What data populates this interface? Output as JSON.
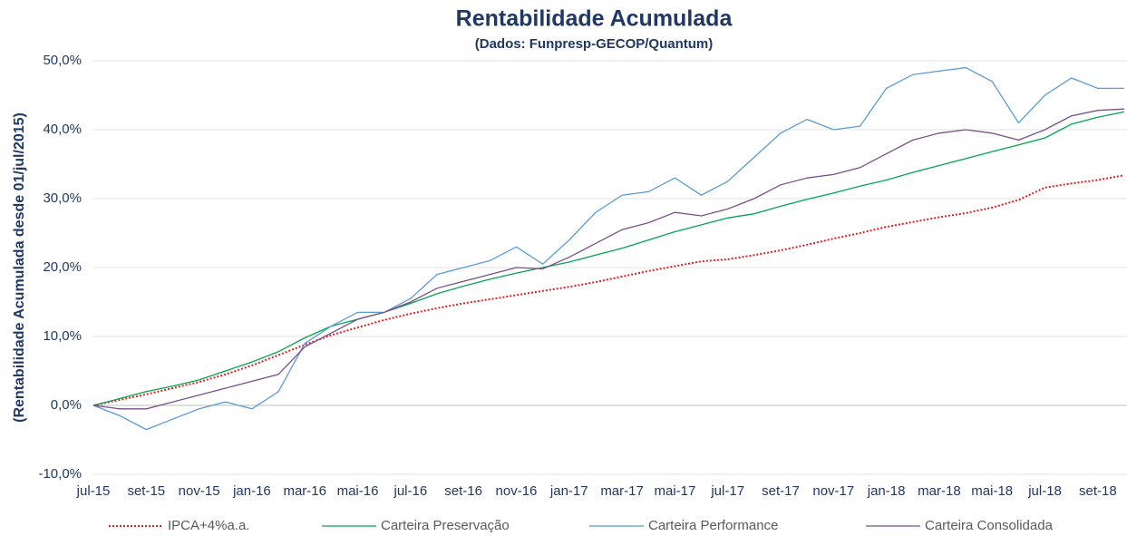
{
  "chart_data": {
    "type": "line",
    "title": "Rentabilidade Acumulada",
    "subtitle": "(Dados: Funpresp-GECOP/Quantum)",
    "y_axis_label": "(Rentabilidade Acumulada desde 01/jul/2015)",
    "categories": [
      "jul-15",
      null,
      "set-15",
      null,
      "nov-15",
      null,
      "jan-16",
      null,
      "mar-16",
      null,
      "mai-16",
      null,
      "jul-16",
      null,
      "set-16",
      null,
      "nov-16",
      null,
      "jan-17",
      null,
      "mar-17",
      null,
      "mai-17",
      null,
      "jul-17",
      null,
      "set-17",
      null,
      "nov-17",
      null,
      "jan-18",
      null,
      "mar-18",
      null,
      "mai-18",
      null,
      "jul-18",
      null,
      "set-18",
      null
    ],
    "ylim": [
      -10,
      50
    ],
    "yticks": [
      {
        "value": -10,
        "label": "-10,0%"
      },
      {
        "value": 0,
        "label": "0,0%"
      },
      {
        "value": 10,
        "label": "10,0%"
      },
      {
        "value": 20,
        "label": "20,0%"
      },
      {
        "value": 30,
        "label": "30,0%"
      },
      {
        "value": 40,
        "label": "40,0%"
      },
      {
        "value": 50,
        "label": "50,0%"
      }
    ],
    "grid": true,
    "legend": "bottom",
    "series": [
      {
        "name": "IPCA+4%a.a.",
        "color": "#e02020",
        "dash": "dotted",
        "values": [
          0,
          0.8,
          1.6,
          2.5,
          3.4,
          4.5,
          5.8,
          7.3,
          8.8,
          10.2,
          11.3,
          12.4,
          13.3,
          14.1,
          14.8,
          15.4,
          16.0,
          16.6,
          17.2,
          17.9,
          18.7,
          19.5,
          20.2,
          20.9,
          21.2,
          21.8,
          22.5,
          23.3,
          24.2,
          25.0,
          25.9,
          26.6,
          27.3,
          27.9,
          28.7,
          29.8,
          31.6,
          32.2,
          32.7,
          33.4
        ]
      },
      {
        "name": "Carteira Preservação",
        "color": "#00a550",
        "values": [
          0,
          1.0,
          2.0,
          2.8,
          3.7,
          5.0,
          6.3,
          7.8,
          9.8,
          11.5,
          12.5,
          13.5,
          14.8,
          16.2,
          17.3,
          18.3,
          19.2,
          20.0,
          20.8,
          21.8,
          22.8,
          24.0,
          25.2,
          26.2,
          27.2,
          27.8,
          28.9,
          29.9,
          30.8,
          31.8,
          32.7,
          33.8,
          34.8,
          35.8,
          36.8,
          37.8,
          38.8,
          40.8,
          41.8,
          42.6
        ]
      },
      {
        "name": "Carteira Performance",
        "color": "#5b9bd5",
        "values": [
          0,
          -1.5,
          -3.5,
          -2,
          -0.5,
          0.5,
          -0.5,
          2,
          9,
          11.5,
          13.5,
          13.5,
          15.5,
          19,
          20,
          21,
          23,
          20.5,
          24,
          28,
          30.5,
          31,
          33,
          30.5,
          32.5,
          36,
          39.5,
          41.5,
          40,
          40.5,
          46,
          48,
          48.5,
          49,
          47,
          41,
          45,
          47.5,
          46,
          46
        ]
      },
      {
        "name": "Carteira Consolidada",
        "color": "#7a4f8a",
        "values": [
          0,
          -0.5,
          -0.5,
          0.5,
          1.5,
          2.5,
          3.5,
          4.5,
          8.5,
          10.5,
          12.5,
          13.5,
          15,
          17,
          18,
          19,
          20,
          19.8,
          21.5,
          23.5,
          25.5,
          26.5,
          28,
          27.5,
          28.5,
          30,
          32,
          33,
          33.5,
          34.5,
          36.5,
          38.5,
          39.5,
          40,
          39.5,
          38.5,
          40,
          42,
          42.8,
          43
        ]
      }
    ]
  }
}
